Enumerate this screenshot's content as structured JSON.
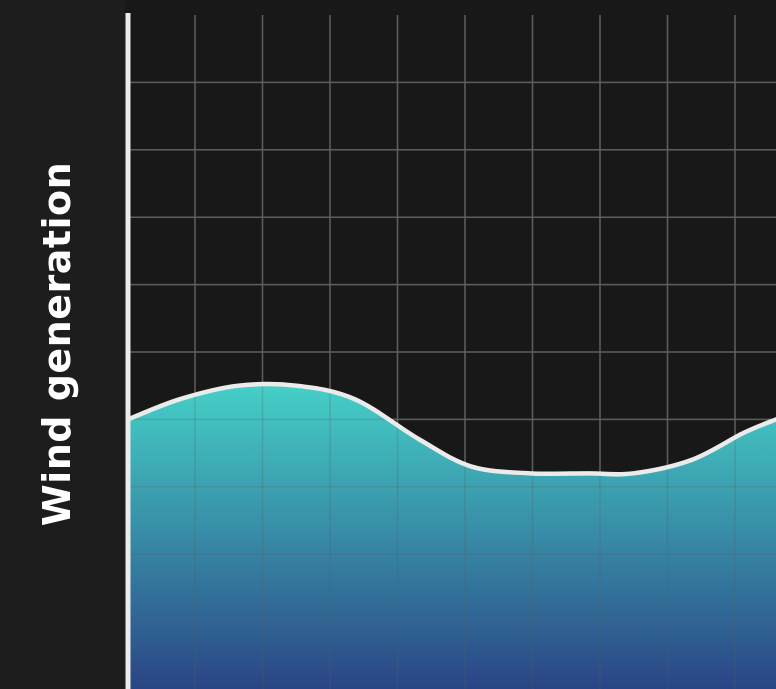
{
  "chart_data": {
    "type": "area",
    "ylabel": "Wind generation",
    "xlabel": "",
    "title": "",
    "xlim": [
      0,
      1
    ],
    "ylim": [
      0,
      10
    ],
    "grid": true,
    "series": [
      {
        "x": [
          0,
          0.08,
          0.17,
          0.26,
          0.35,
          0.45,
          0.53,
          0.62,
          0.71,
          0.78,
          0.87,
          0.95,
          1.0
        ],
        "values": [
          4.0,
          4.3,
          4.5,
          4.5,
          4.3,
          3.7,
          3.3,
          3.2,
          3.2,
          3.2,
          3.4,
          3.8,
          4.0
        ]
      }
    ],
    "colors": {
      "fill_top": "#45d0c7",
      "fill_bottom": "#2a4585",
      "line": "#ebebeb",
      "grid": "#5b5e5b",
      "axis": "#ebebeb",
      "background": "#171817"
    }
  }
}
